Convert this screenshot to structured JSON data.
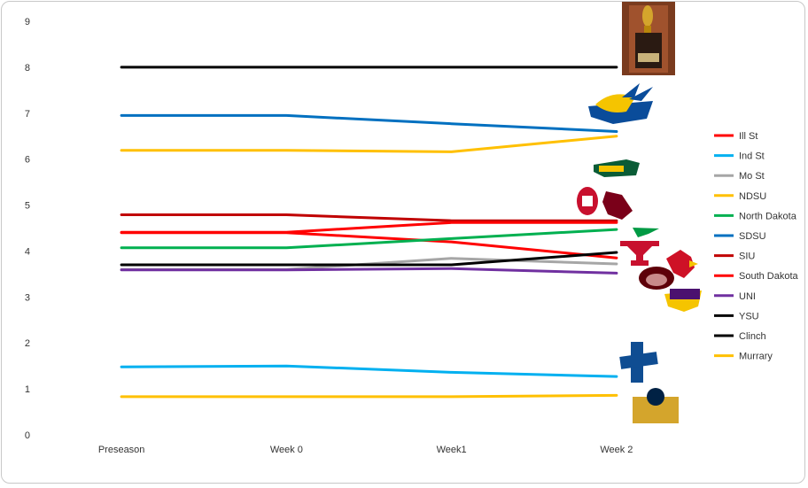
{
  "chart_data": {
    "type": "line",
    "title": "",
    "xlabel": "",
    "ylabel": "",
    "categories": [
      "Preseason",
      "Week 0",
      "Week1",
      "Week 2"
    ],
    "ylim": [
      0,
      9
    ],
    "yticks": [
      "0",
      "1",
      "2",
      "3",
      "4",
      "5",
      "6",
      "7",
      "8",
      "9"
    ],
    "grid": true,
    "legend_position": "right",
    "series": [
      {
        "name": "Ill St",
        "color": "#ff0000",
        "values": [
          4.4,
          4.4,
          4.2,
          3.85
        ]
      },
      {
        "name": "Ind St",
        "color": "#00b0f0",
        "values": [
          1.48,
          1.5,
          1.36,
          1.27
        ]
      },
      {
        "name": "Mo St",
        "color": "#a6a6a6",
        "values": [
          3.6,
          3.6,
          3.84,
          3.72
        ]
      },
      {
        "name": "NDSU",
        "color": "#ffc000",
        "values": [
          6.19,
          6.19,
          6.16,
          6.5
        ]
      },
      {
        "name": "North Dakota",
        "color": "#00b050",
        "values": [
          4.07,
          4.07,
          4.27,
          4.47
        ]
      },
      {
        "name": "SDSU",
        "color": "#0070c0",
        "values": [
          6.95,
          6.95,
          6.77,
          6.6
        ]
      },
      {
        "name": "SIU",
        "color": "#c00000",
        "values": [
          4.79,
          4.79,
          4.66,
          4.66
        ]
      },
      {
        "name": "South Dakota",
        "color": "#ff0000",
        "values": [
          4.41,
          4.41,
          4.62,
          4.62
        ]
      },
      {
        "name": "UNI",
        "color": "#7030a0",
        "values": [
          3.59,
          3.59,
          3.62,
          3.52
        ]
      },
      {
        "name": "YSU",
        "color": "#000000",
        "values": [
          3.7,
          3.7,
          3.7,
          3.97
        ]
      },
      {
        "name": "Clinch",
        "color": "#000000",
        "values": [
          8.0,
          8.0,
          8.0,
          8.0
        ]
      },
      {
        "name": "Murrary",
        "color": "#ffc000",
        "values": [
          0.83,
          0.83,
          0.83,
          0.86
        ]
      }
    ]
  },
  "logos": [
    {
      "name": "trophy-image",
      "icon": "trophy"
    },
    {
      "name": "sdsu-logo",
      "icon": "jackrabbit",
      "color": "#0a4c9a"
    },
    {
      "name": "ndsu-logo",
      "icon": "bison",
      "color": "#0a5c36"
    },
    {
      "name": "south-dakota-logo",
      "icon": "coyote",
      "color": "#c8102e"
    },
    {
      "name": "siu-logo",
      "icon": "saluki",
      "color": "#7a0019"
    },
    {
      "name": "north-dakota-logo",
      "icon": "fighting-hawk",
      "color": "#009a44"
    },
    {
      "name": "ysu-logo",
      "icon": "y",
      "color": "#c8102e"
    },
    {
      "name": "ill-st-logo",
      "icon": "redbird",
      "color": "#ce1126"
    },
    {
      "name": "mo-st-logo",
      "icon": "bear",
      "color": "#5e0009"
    },
    {
      "name": "uni-logo",
      "icon": "panther",
      "color": "#4b116f"
    },
    {
      "name": "ind-st-logo",
      "icon": "sycamores",
      "color": "#0f4d92"
    },
    {
      "name": "murray-logo",
      "icon": "racer",
      "color": "#002144"
    }
  ]
}
